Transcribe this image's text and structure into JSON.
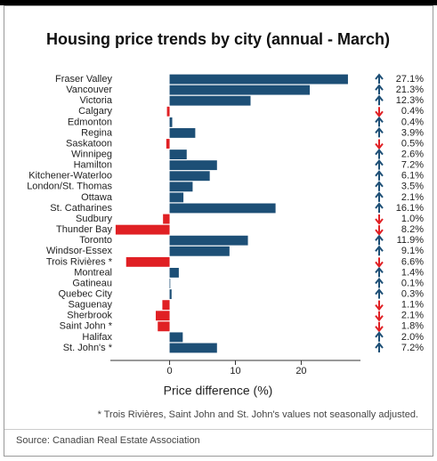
{
  "chart_data": {
    "type": "bar",
    "orientation": "horizontal",
    "title": "Housing price trends by city (annual - March)",
    "categories": [
      "Fraser Valley",
      "Vancouver",
      "Victoria",
      "Calgary",
      "Edmonton",
      "Regina",
      "Saskatoon",
      "Winnipeg",
      "Hamilton",
      "Kitchener-Waterloo",
      "London/St. Thomas",
      "Ottawa",
      "St. Catharines",
      "Sudbury",
      "Thunder Bay",
      "Toronto",
      "Windsor-Essex",
      "Trois Rivières *",
      "Montreal",
      "Gatineau",
      "Quebec City",
      "Saguenay",
      "Sherbrook",
      "Saint John *",
      "Halifax",
      "St. John's *"
    ],
    "values": [
      27.1,
      21.3,
      12.3,
      -0.4,
      0.4,
      3.9,
      -0.5,
      2.6,
      7.2,
      6.1,
      3.5,
      2.1,
      16.1,
      -1.0,
      -8.2,
      11.9,
      9.1,
      -6.6,
      1.4,
      0.1,
      0.3,
      -1.1,
      -2.1,
      -1.8,
      2.0,
      7.2
    ],
    "value_labels": [
      "27.1%",
      "21.3%",
      "12.3%",
      "0.4%",
      "0.4%",
      "3.9%",
      "0.5%",
      "2.6%",
      "7.2%",
      "6.1%",
      "3.5%",
      "2.1%",
      "16.1%",
      "1.0%",
      "8.2%",
      "11.9%",
      "9.1%",
      "6.6%",
      "1.4%",
      "0.1%",
      "0.3%",
      "1.1%",
      "2.1%",
      "1.8%",
      "2.0%",
      "7.2%"
    ],
    "positive_color": "#1d4f76",
    "negative_color": "#e02024",
    "x_label": "Price difference (%)",
    "xlim": [
      -9,
      29
    ],
    "xticks": [
      0,
      10,
      20
    ],
    "note": "* Trois Rivières, Saint John and St. John's values not seasonally adjusted.",
    "source": "Source: Canadian Real Estate Association"
  }
}
